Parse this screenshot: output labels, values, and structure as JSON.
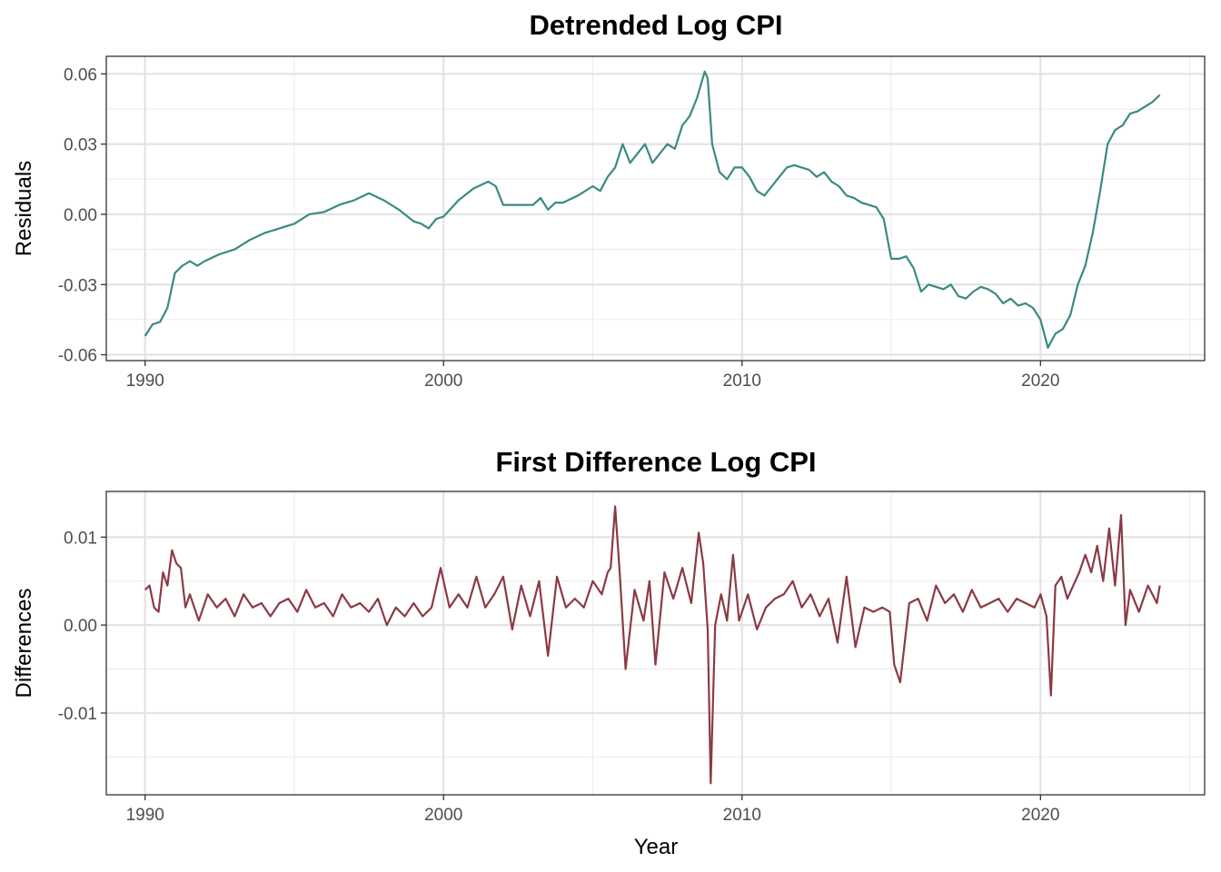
{
  "chart_data": [
    {
      "type": "line",
      "title": "Detrended Log CPI",
      "xlabel": "",
      "ylabel": "Residuals",
      "xlim": [
        1988.7,
        2025.5
      ],
      "ylim": [
        -0.0625,
        0.0675
      ],
      "xticks": [
        1990,
        2000,
        2010,
        2020
      ],
      "xtick_labels": [
        "1990",
        "2000",
        "2010",
        "2020"
      ],
      "yticks": [
        -0.06,
        -0.03,
        0.0,
        0.03,
        0.06
      ],
      "ytick_labels": [
        "-0.06",
        "-0.03",
        "0.00",
        "0.03",
        "0.06"
      ],
      "grid": true,
      "color": "#3a8a82",
      "series": [
        {
          "x": [
            1990.0,
            1990.25,
            1990.5,
            1990.75,
            1991.0,
            1991.25,
            1991.5,
            1991.75,
            1992.0,
            1992.5,
            1993.0,
            1993.5,
            1994.0,
            1994.5,
            1995.0,
            1995.5,
            1996.0,
            1996.5,
            1997.0,
            1997.5,
            1998.0,
            1998.5,
            1999.0,
            1999.25,
            1999.5,
            1999.75,
            2000.0,
            2000.5,
            2001.0,
            2001.5,
            2001.75,
            2002.0,
            2002.5,
            2003.0,
            2003.25,
            2003.5,
            2003.75,
            2004.0,
            2004.5,
            2005.0,
            2005.25,
            2005.5,
            2005.75,
            2006.0,
            2006.25,
            2006.5,
            2006.75,
            2007.0,
            2007.25,
            2007.5,
            2007.75,
            2008.0,
            2008.25,
            2008.5,
            2008.75,
            2008.85,
            2009.0,
            2009.25,
            2009.5,
            2009.75,
            2010.0,
            2010.25,
            2010.5,
            2010.75,
            2011.0,
            2011.25,
            2011.5,
            2011.75,
            2012.0,
            2012.25,
            2012.5,
            2012.75,
            2013.0,
            2013.25,
            2013.5,
            2013.75,
            2014.0,
            2014.25,
            2014.5,
            2014.75,
            2015.0,
            2015.25,
            2015.5,
            2015.75,
            2016.0,
            2016.25,
            2016.5,
            2016.75,
            2017.0,
            2017.25,
            2017.5,
            2017.75,
            2018.0,
            2018.25,
            2018.5,
            2018.75,
            2019.0,
            2019.25,
            2019.5,
            2019.75,
            2020.0,
            2020.25,
            2020.5,
            2020.75,
            2021.0,
            2021.25,
            2021.5,
            2021.75,
            2022.0,
            2022.25,
            2022.5,
            2022.75,
            2023.0,
            2023.25,
            2023.5,
            2023.75,
            2024.0
          ],
          "y": [
            -0.052,
            -0.047,
            -0.046,
            -0.04,
            -0.025,
            -0.022,
            -0.02,
            -0.022,
            -0.02,
            -0.017,
            -0.015,
            -0.011,
            -0.008,
            -0.006,
            -0.004,
            0.0,
            0.001,
            0.004,
            0.006,
            0.009,
            0.006,
            0.002,
            -0.003,
            -0.004,
            -0.006,
            -0.002,
            -0.001,
            0.006,
            0.011,
            0.014,
            0.012,
            0.004,
            0.004,
            0.004,
            0.007,
            0.002,
            0.005,
            0.005,
            0.008,
            0.012,
            0.01,
            0.016,
            0.02,
            0.03,
            0.022,
            0.026,
            0.03,
            0.022,
            0.026,
            0.03,
            0.028,
            0.038,
            0.042,
            0.05,
            0.061,
            0.058,
            0.03,
            0.018,
            0.015,
            0.02,
            0.02,
            0.016,
            0.01,
            0.008,
            0.012,
            0.016,
            0.02,
            0.021,
            0.02,
            0.019,
            0.016,
            0.018,
            0.014,
            0.012,
            0.008,
            0.007,
            0.005,
            0.004,
            0.003,
            -0.002,
            -0.019,
            -0.019,
            -0.018,
            -0.023,
            -0.033,
            -0.03,
            -0.031,
            -0.032,
            -0.03,
            -0.035,
            -0.036,
            -0.033,
            -0.031,
            -0.032,
            -0.034,
            -0.038,
            -0.036,
            -0.039,
            -0.038,
            -0.04,
            -0.045,
            -0.057,
            -0.051,
            -0.049,
            -0.043,
            -0.03,
            -0.022,
            -0.008,
            0.01,
            0.03,
            0.036,
            0.038,
            0.043,
            0.044,
            0.046,
            0.048,
            0.051
          ]
        }
      ]
    },
    {
      "type": "line",
      "title": "First Difference Log CPI",
      "xlabel": "Year",
      "ylabel": "Differences",
      "xlim": [
        1988.7,
        2025.5
      ],
      "ylim": [
        -0.0193,
        0.0152
      ],
      "xticks": [
        1990,
        2000,
        2010,
        2020
      ],
      "xtick_labels": [
        "1990",
        "2000",
        "2010",
        "2020"
      ],
      "yticks": [
        -0.01,
        0.0,
        0.01
      ],
      "ytick_labels": [
        "-0.01",
        "0.00",
        "0.01"
      ],
      "grid": true,
      "color": "#8b3a44",
      "series": [
        {
          "x": [
            1990.0,
            1990.15,
            1990.3,
            1990.45,
            1990.6,
            1990.75,
            1990.9,
            1991.05,
            1991.2,
            1991.35,
            1991.5,
            1991.8,
            1992.1,
            1992.4,
            1992.7,
            1993.0,
            1993.3,
            1993.6,
            1993.9,
            1994.2,
            1994.5,
            1994.8,
            1995.1,
            1995.4,
            1995.7,
            1996.0,
            1996.3,
            1996.6,
            1996.9,
            1997.2,
            1997.5,
            1997.8,
            1998.1,
            1998.4,
            1998.7,
            1999.0,
            1999.3,
            1999.6,
            1999.9,
            2000.2,
            2000.5,
            2000.8,
            2001.1,
            2001.4,
            2001.7,
            2002.0,
            2002.3,
            2002.6,
            2002.9,
            2003.2,
            2003.5,
            2003.8,
            2004.1,
            2004.4,
            2004.7,
            2005.0,
            2005.3,
            2005.5,
            2005.6,
            2005.75,
            2005.9,
            2006.1,
            2006.4,
            2006.7,
            2006.9,
            2007.1,
            2007.4,
            2007.7,
            2008.0,
            2008.3,
            2008.55,
            2008.7,
            2008.85,
            2008.95,
            2009.1,
            2009.3,
            2009.5,
            2009.7,
            2009.9,
            2010.2,
            2010.5,
            2010.8,
            2011.1,
            2011.4,
            2011.7,
            2012.0,
            2012.3,
            2012.6,
            2012.9,
            2013.2,
            2013.5,
            2013.8,
            2014.1,
            2014.4,
            2014.7,
            2014.95,
            2015.1,
            2015.3,
            2015.6,
            2015.9,
            2016.2,
            2016.5,
            2016.8,
            2017.1,
            2017.4,
            2017.7,
            2018.0,
            2018.3,
            2018.6,
            2018.9,
            2019.2,
            2019.5,
            2019.8,
            2020.0,
            2020.2,
            2020.35,
            2020.5,
            2020.7,
            2020.9,
            2021.1,
            2021.3,
            2021.5,
            2021.7,
            2021.9,
            2022.1,
            2022.3,
            2022.5,
            2022.7,
            2022.85,
            2023.0,
            2023.3,
            2023.6,
            2023.9,
            2024.0
          ],
          "y": [
            0.004,
            0.0045,
            0.002,
            0.0015,
            0.006,
            0.0045,
            0.0085,
            0.007,
            0.0065,
            0.002,
            0.0035,
            0.0005,
            0.0035,
            0.002,
            0.003,
            0.001,
            0.0035,
            0.002,
            0.0025,
            0.001,
            0.0025,
            0.003,
            0.0015,
            0.004,
            0.002,
            0.0025,
            0.001,
            0.0035,
            0.002,
            0.0025,
            0.0015,
            0.003,
            0.0,
            0.002,
            0.001,
            0.0025,
            0.001,
            0.002,
            0.0065,
            0.002,
            0.0035,
            0.002,
            0.0055,
            0.002,
            0.0035,
            0.0055,
            -0.0005,
            0.0045,
            0.001,
            0.005,
            -0.0035,
            0.0055,
            0.002,
            0.003,
            0.002,
            0.005,
            0.0035,
            0.006,
            0.0065,
            0.0135,
            0.006,
            -0.005,
            0.004,
            0.0005,
            0.005,
            -0.0045,
            0.006,
            0.003,
            0.0065,
            0.0025,
            0.0105,
            0.007,
            -0.0005,
            -0.018,
            0.0,
            0.0035,
            0.0005,
            0.008,
            0.0005,
            0.0035,
            -0.0005,
            0.002,
            0.003,
            0.0035,
            0.005,
            0.002,
            0.0035,
            0.001,
            0.003,
            -0.002,
            0.0055,
            -0.0025,
            0.002,
            0.0015,
            0.002,
            0.0015,
            -0.0045,
            -0.0065,
            0.0025,
            0.003,
            0.0005,
            0.0045,
            0.0025,
            0.0035,
            0.0015,
            0.004,
            0.002,
            0.0025,
            0.003,
            0.0015,
            0.003,
            0.0025,
            0.002,
            0.0035,
            0.001,
            -0.008,
            0.0045,
            0.0055,
            0.003,
            0.0045,
            0.006,
            0.008,
            0.006,
            0.009,
            0.005,
            0.011,
            0.0045,
            0.0125,
            0.0,
            0.004,
            0.0015,
            0.0045,
            0.0025,
            0.0045
          ]
        }
      ]
    }
  ]
}
